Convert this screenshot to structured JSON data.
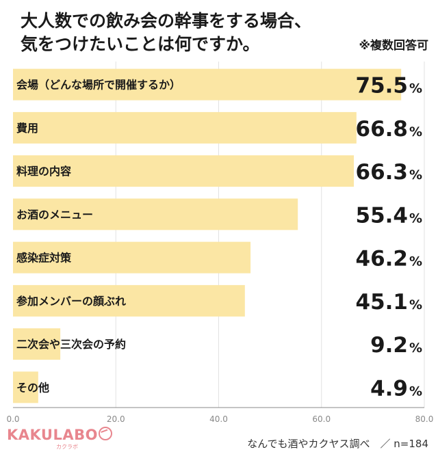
{
  "title_lines": [
    "大人数での飲み会の幹事をする場合、",
    "気をつけたいことは何ですか。"
  ],
  "note": "※複数回答可",
  "source": "なんでも酒やカクヤス調べ　／ n=184",
  "logo": {
    "main": "KAKULABO",
    "sub": "カクラボ"
  },
  "colors": {
    "bar": "#fbe6a4",
    "grid": "#e2e2e2",
    "axis": "#888888",
    "logo": "#e8868e"
  },
  "chart_data": {
    "type": "bar",
    "orientation": "horizontal",
    "categories": [
      "会場（どんな場所で開催するか）",
      "費用",
      "料理の内容",
      "お酒のメニュー",
      "感染症対策",
      "参加メンバーの顔ぶれ",
      "二次会や三次会の予約",
      "その他"
    ],
    "values": [
      75.5,
      66.8,
      66.3,
      55.4,
      46.2,
      45.1,
      9.2,
      4.9
    ],
    "value_labels": [
      "75.5",
      "66.8",
      "66.3",
      "55.4",
      "46.2",
      "45.1",
      "9.2",
      "4.9"
    ],
    "unit": "%",
    "xlim": [
      0,
      80
    ],
    "xticks": [
      0,
      20,
      40,
      60,
      80
    ],
    "xtick_labels": [
      "0.0",
      "20.0",
      "40.0",
      "60.0",
      "80.0"
    ],
    "grid": true
  }
}
